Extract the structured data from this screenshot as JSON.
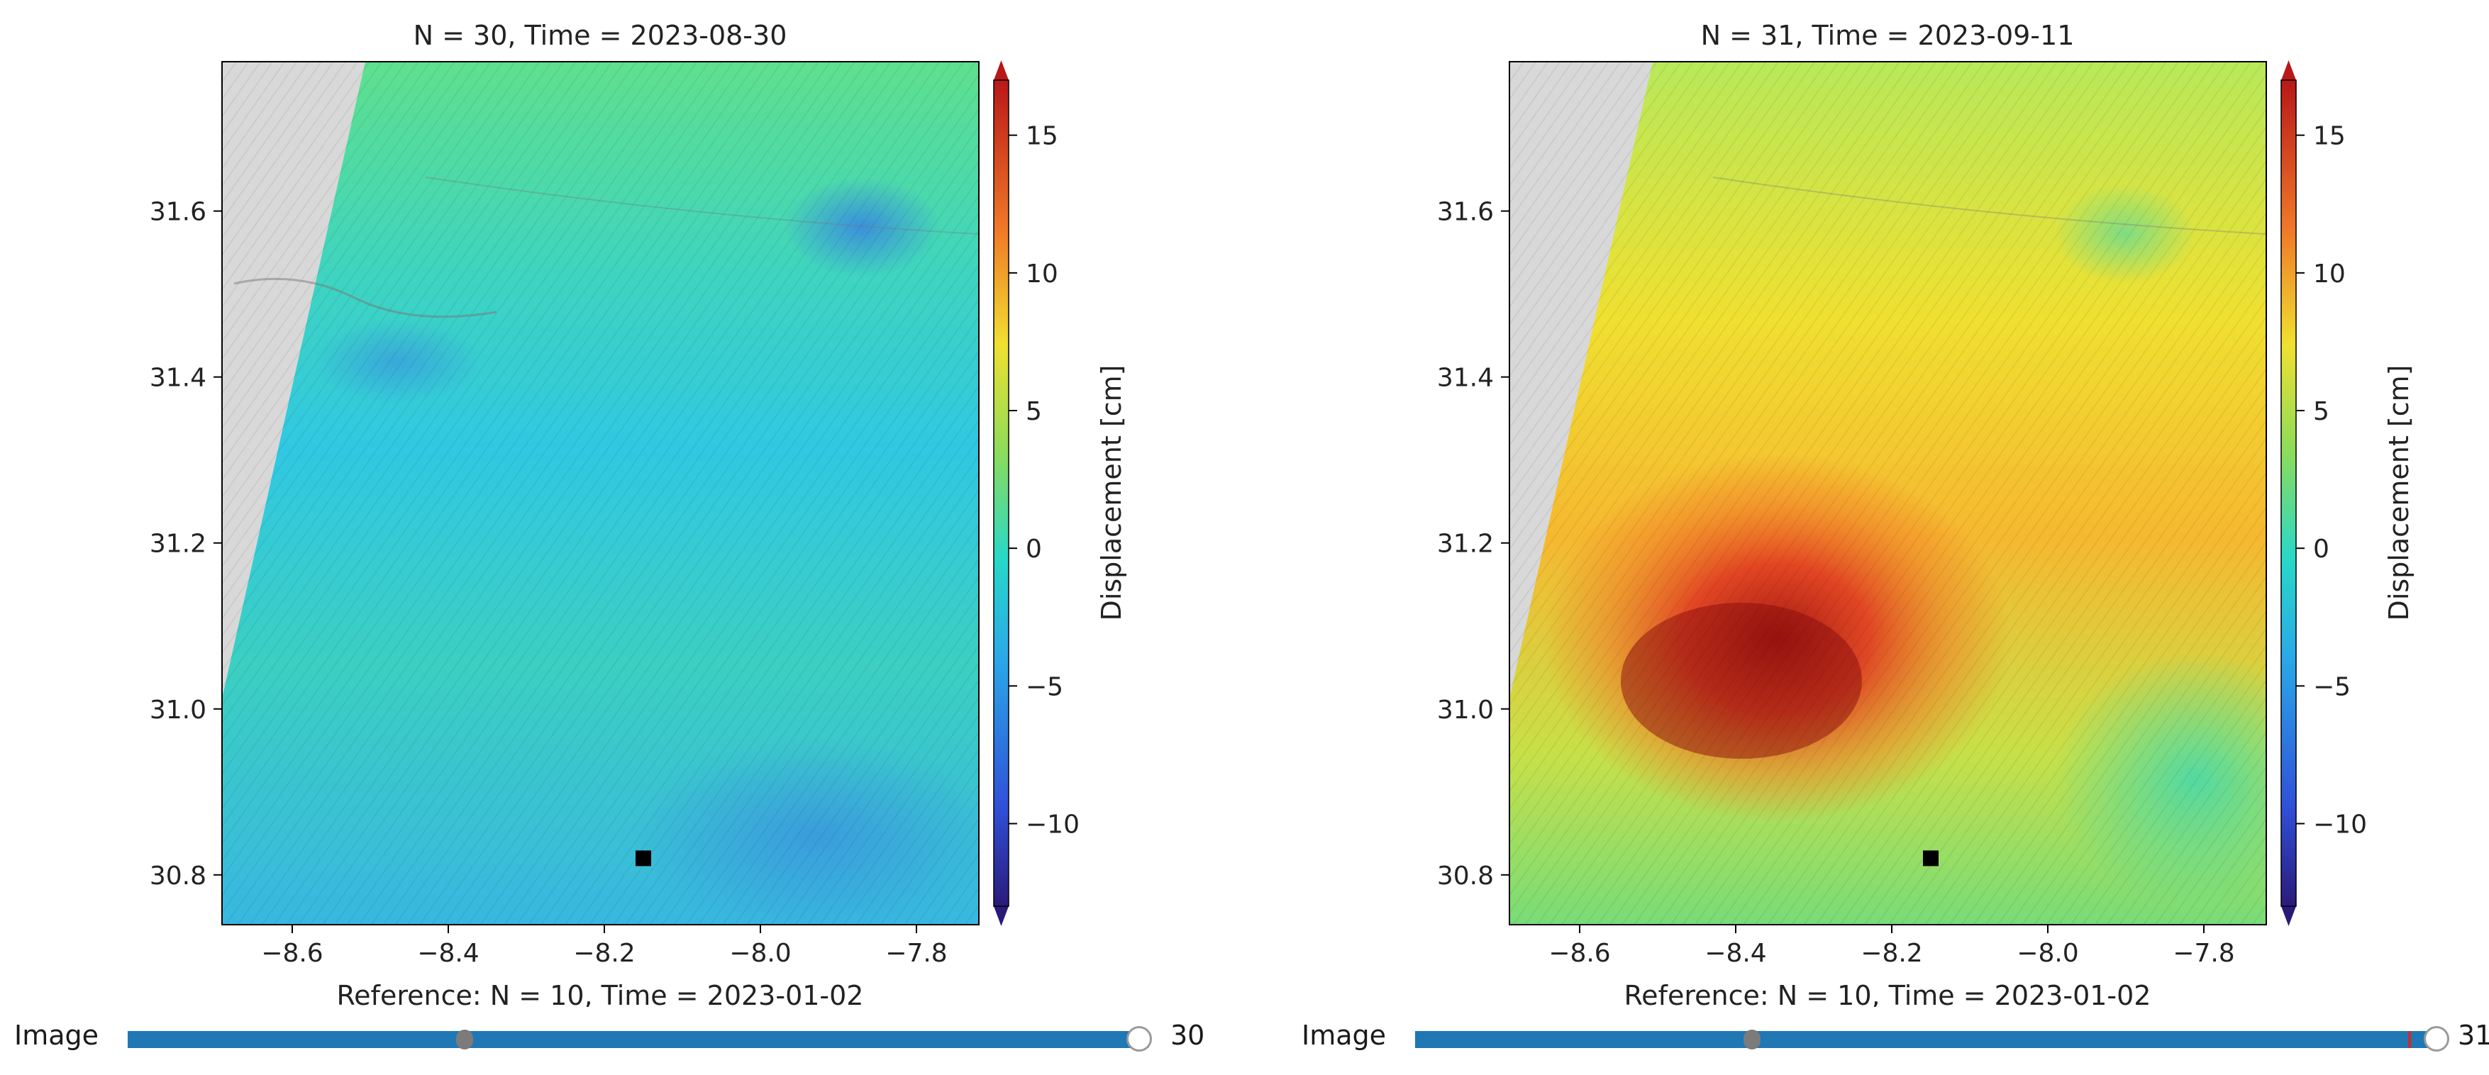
{
  "panels": [
    {
      "title": "N = 30, Time = 2023-08-30",
      "xlabel": "Reference: N = 10, Time = 2023-01-02",
      "colorbar_label": "Displacement [cm]",
      "slider": {
        "label": "Image",
        "value": "30",
        "position_fraction": 0.99,
        "valinit_fraction": 0.33
      },
      "scene": "mostly-negative"
    },
    {
      "title": "N = 31, Time = 2023-09-11",
      "xlabel": "Reference: N = 10, Time = 2023-01-02",
      "colorbar_label": "Displacement [cm]",
      "slider": {
        "label": "Image",
        "value": "31",
        "position_fraction": 1.0,
        "valinit_fraction": 0.33
      },
      "scene": "uplift"
    }
  ],
  "chart_data": [
    {
      "type": "heatmap",
      "title": "N = 30, Time = 2023-08-30",
      "xlabel": "Reference: N = 10, Time = 2023-01-02",
      "ylabel": "",
      "xticks": [
        "−8.6",
        "−8.4",
        "−8.2",
        "−8.0",
        "−7.8"
      ],
      "xtick_values": [
        -8.6,
        -8.4,
        -8.2,
        -8.0,
        -7.8
      ],
      "yticks": [
        "30.8",
        "31.0",
        "31.2",
        "31.4",
        "31.6"
      ],
      "ytick_values": [
        30.8,
        31.0,
        31.2,
        31.4,
        31.6
      ],
      "xlim": [
        -8.69,
        -7.72
      ],
      "ylim": [
        30.74,
        31.78
      ],
      "colorbar": {
        "label": "Displacement [cm]",
        "ticks": [
          "−10",
          "−5",
          "0",
          "5",
          "10",
          "15"
        ],
        "tick_values": [
          -10,
          -5,
          0,
          5,
          10,
          15
        ],
        "range": [
          -13,
          17
        ],
        "cmap": "jet"
      },
      "reference_point": {
        "x": -8.15,
        "y": 30.82
      }
    },
    {
      "type": "heatmap",
      "title": "N = 31, Time = 2023-09-11",
      "xlabel": "Reference: N = 10, Time = 2023-01-02",
      "ylabel": "",
      "xticks": [
        "−8.6",
        "−8.4",
        "−8.2",
        "−8.0",
        "−7.8"
      ],
      "xtick_values": [
        -8.6,
        -8.4,
        -8.2,
        -8.0,
        -7.8
      ],
      "yticks": [
        "30.8",
        "31.0",
        "31.2",
        "31.4",
        "31.6"
      ],
      "ytick_values": [
        30.8,
        31.0,
        31.2,
        31.4,
        31.6
      ],
      "xlim": [
        -8.69,
        -7.72
      ],
      "ylim": [
        30.74,
        31.78
      ],
      "colorbar": {
        "label": "Displacement [cm]",
        "ticks": [
          "−10",
          "−5",
          "0",
          "5",
          "10",
          "15"
        ],
        "tick_values": [
          -10,
          -5,
          0,
          5,
          10,
          15
        ],
        "range": [
          -13,
          17
        ],
        "cmap": "jet"
      },
      "reference_point": {
        "x": -8.15,
        "y": 30.82
      }
    }
  ]
}
